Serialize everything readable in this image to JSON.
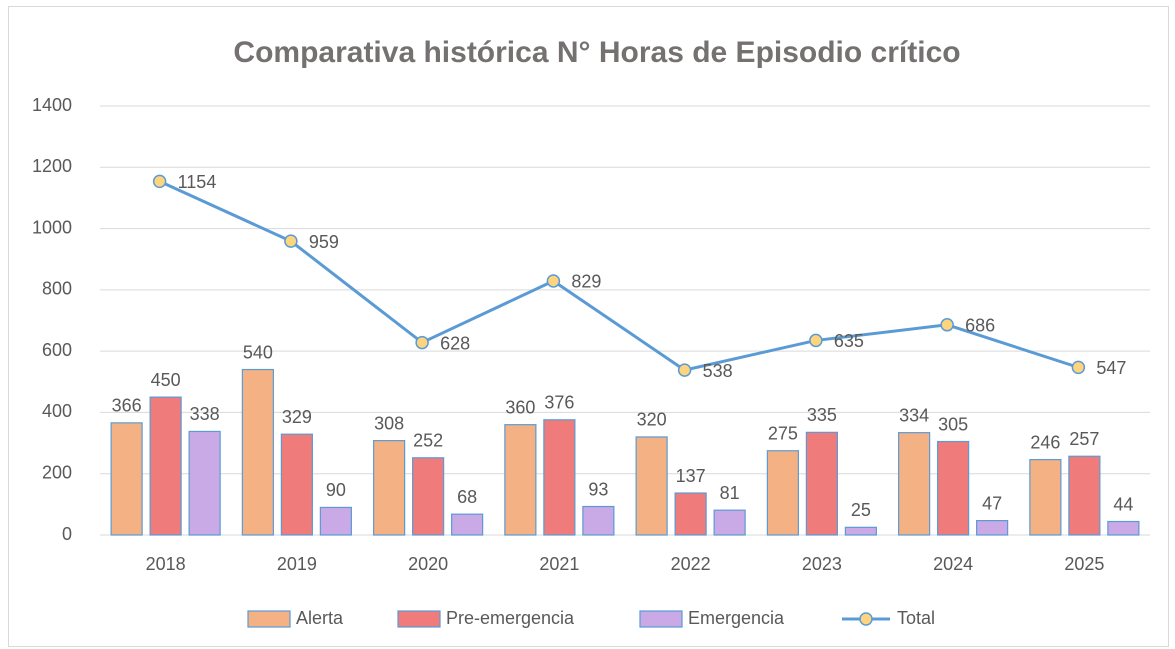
{
  "chart_data": {
    "type": "bar",
    "title": "Comparativa histórica N° Horas de Episodio crítico",
    "categories": [
      "2018",
      "2019",
      "2020",
      "2021",
      "2022",
      "2023",
      "2024",
      "2025"
    ],
    "series": [
      {
        "name": "Alerta",
        "type": "bar",
        "color": "#f4b183",
        "values": [
          366,
          540,
          308,
          360,
          320,
          275,
          334,
          246
        ]
      },
      {
        "name": "Pre-emergencia",
        "type": "bar",
        "color": "#f07b7b",
        "values": [
          450,
          329,
          252,
          376,
          137,
          335,
          305,
          257
        ]
      },
      {
        "name": "Emergencia",
        "type": "bar",
        "color": "#c9a9e6",
        "values": [
          338,
          90,
          68,
          93,
          81,
          25,
          47,
          44
        ]
      },
      {
        "name": "Total",
        "type": "line",
        "color": "#5b9bd5",
        "values": [
          1154,
          959,
          628,
          829,
          538,
          635,
          686,
          547
        ]
      }
    ],
    "ylim": [
      0,
      1400
    ],
    "yticks": [
      0,
      200,
      400,
      600,
      800,
      1000,
      1200,
      1400
    ],
    "grid": true,
    "legend": "bottom"
  }
}
